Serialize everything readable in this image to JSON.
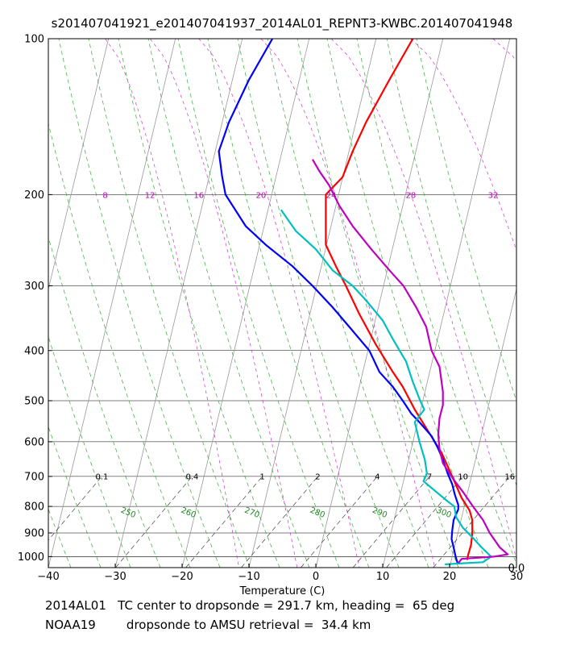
{
  "chart_data": {
    "type": "line",
    "title": "s201407041921_e201407041937_2014AL01_REPNT3-KWBC.201407041948",
    "xlabel": "Temperature (C)",
    "ylabel": "",
    "x_log": false,
    "y_log": true,
    "y_inverted": true,
    "xlim": [
      -40,
      30
    ],
    "ylim": [
      1050,
      100
    ],
    "x_ticks": [
      -40,
      -30,
      -20,
      -10,
      0,
      10,
      20,
      30
    ],
    "x_tick_labels": [
      "−40",
      "−30",
      "−20",
      "−10",
      "0",
      "10",
      "20",
      "30"
    ],
    "y_ticks": [
      100,
      200,
      300,
      400,
      500,
      600,
      700,
      800,
      900,
      1000
    ],
    "y_tick_labels": [
      "100",
      "200",
      "300",
      "400",
      "500",
      "600",
      "700",
      "800",
      "900",
      "1000"
    ],
    "grid": true,
    "isobar_lines": [
      100,
      200,
      300,
      400,
      500,
      600,
      700,
      800,
      900,
      1000
    ],
    "isotherm_lines_skew_deg_c": [
      -120,
      -110,
      -100,
      -90,
      -80,
      -70,
      -60,
      -50,
      -40,
      -30,
      -20,
      -10,
      0,
      10,
      20,
      30,
      40
    ],
    "mixing_ratio_labels": {
      "pressure": 700,
      "items": [
        {
          "label": "0.1",
          "x": -32
        },
        {
          "label": "0.4",
          "x": -18.5
        },
        {
          "label": "1",
          "x": -8
        },
        {
          "label": "2",
          "x": 0.3
        },
        {
          "label": "4",
          "x": 9.2
        },
        {
          "label": "7",
          "x": 17
        },
        {
          "label": "10",
          "x": 22
        },
        {
          "label": "16",
          "x": 29
        }
      ]
    },
    "dry_adiabat_labels": {
      "items": [
        {
          "label": "250",
          "x": -28,
          "p": 820
        },
        {
          "label": "260",
          "x": -19,
          "p": 820
        },
        {
          "label": "270",
          "x": -9.5,
          "p": 820
        },
        {
          "label": "280",
          "x": 0.3,
          "p": 820
        },
        {
          "label": "290",
          "x": 9.6,
          "p": 820
        },
        {
          "label": "300",
          "x": 19.2,
          "p": 820
        }
      ]
    },
    "moist_adiabat_labels": {
      "pressure": 200,
      "items": [
        {
          "label": "8",
          "x": -31.5
        },
        {
          "label": "12",
          "x": -24.8
        },
        {
          "label": "16",
          "x": -17.5
        },
        {
          "label": "20",
          "x": -8.2
        },
        {
          "label": "24",
          "x": 2.3
        },
        {
          "label": "28",
          "x": 14.2
        },
        {
          "label": "32",
          "x": 26.5
        }
      ]
    },
    "corner_label": "0.0",
    "series": [
      {
        "color": "#ff0000",
        "points": [
          [
            14.5,
            100
          ],
          [
            11,
            120
          ],
          [
            7.5,
            145
          ],
          [
            5.5,
            165
          ],
          [
            4,
            185
          ],
          [
            1.5,
            200
          ],
          [
            1.5,
            230
          ],
          [
            1.5,
            250
          ],
          [
            3,
            275
          ],
          [
            4.5,
            300
          ],
          [
            6.5,
            340
          ],
          [
            9,
            390
          ],
          [
            11.5,
            440
          ],
          [
            13,
            470
          ],
          [
            14.8,
            520
          ],
          [
            16.7,
            570
          ],
          [
            18.8,
            630
          ],
          [
            20.4,
            700
          ],
          [
            21.8,
            770
          ],
          [
            23,
            815
          ],
          [
            23.4,
            850
          ],
          [
            23.4,
            900
          ],
          [
            23.2,
            950
          ],
          [
            22.8,
            990
          ],
          [
            22.6,
            1015
          ]
        ]
      },
      {
        "color": "#0000ff",
        "points": [
          [
            -6.5,
            100
          ],
          [
            -10,
            120
          ],
          [
            -13,
            145
          ],
          [
            -14.5,
            165
          ],
          [
            -14,
            185
          ],
          [
            -13.5,
            200
          ],
          [
            -10.5,
            230
          ],
          [
            -7.5,
            250
          ],
          [
            -3.5,
            275
          ],
          [
            -0.5,
            300
          ],
          [
            2.5,
            330
          ],
          [
            5,
            360
          ],
          [
            8,
            400
          ],
          [
            9.5,
            440
          ],
          [
            11.5,
            470
          ],
          [
            13,
            500
          ],
          [
            14.3,
            530
          ],
          [
            15.5,
            550
          ],
          [
            17.3,
            585
          ],
          [
            18.2,
            615
          ],
          [
            19,
            650
          ],
          [
            19.7,
            690
          ],
          [
            20.4,
            725
          ],
          [
            20.8,
            760
          ],
          [
            21.3,
            795
          ],
          [
            21.3,
            810
          ],
          [
            20.6,
            850
          ],
          [
            20.4,
            890
          ],
          [
            20.3,
            925
          ],
          [
            20.6,
            960
          ],
          [
            20.9,
            1000
          ],
          [
            21.2,
            1030
          ]
        ]
      },
      {
        "color": "#00bfbf",
        "points": [
          [
            -5.2,
            214
          ],
          [
            -3,
            235
          ],
          [
            0,
            255
          ],
          [
            2.5,
            280
          ],
          [
            5.5,
            300
          ],
          [
            7.5,
            320
          ],
          [
            10,
            350
          ],
          [
            11.5,
            380
          ],
          [
            13.5,
            420
          ],
          [
            14.5,
            460
          ],
          [
            15.6,
            500
          ],
          [
            16.2,
            520
          ],
          [
            14.8,
            550
          ],
          [
            15.5,
            600
          ],
          [
            16.3,
            650
          ],
          [
            16.6,
            690
          ],
          [
            16.1,
            715
          ],
          [
            19.6,
            780
          ],
          [
            20.7,
            800
          ],
          [
            21,
            840
          ],
          [
            22,
            880
          ],
          [
            23.5,
            920
          ],
          [
            24.8,
            960
          ],
          [
            25.7,
            985
          ],
          [
            26.2,
            1000
          ],
          [
            25,
            1025
          ],
          [
            22,
            1030
          ],
          [
            19.3,
            1035
          ]
        ]
      },
      {
        "color": "#bf00bf",
        "points": [
          [
            -0.5,
            171
          ],
          [
            0.5,
            180
          ],
          [
            2,
            192
          ],
          [
            3.5,
            210
          ],
          [
            5.5,
            230
          ],
          [
            8.3,
            255
          ],
          [
            11,
            280
          ],
          [
            13.1,
            300
          ],
          [
            15,
            330
          ],
          [
            16.5,
            360
          ],
          [
            17.3,
            400
          ],
          [
            18.5,
            430
          ],
          [
            19,
            480
          ],
          [
            19,
            510
          ],
          [
            18.5,
            540
          ],
          [
            18.3,
            580
          ],
          [
            18.5,
            620
          ],
          [
            19,
            660
          ],
          [
            20.6,
            710
          ],
          [
            22,
            750
          ],
          [
            23.5,
            800
          ],
          [
            25,
            850
          ],
          [
            26,
            900
          ],
          [
            27.5,
            960
          ],
          [
            28.7,
            990
          ],
          [
            26.6,
            1000
          ],
          [
            21.8,
            1010
          ],
          [
            21.3,
            1030
          ]
        ]
      }
    ]
  },
  "captions": {
    "line1": "2014AL01   TC center to dropsonde = 291.7 km, heading =  65 deg",
    "line2": "NOAA19        dropsonde to AMSU retrieval =  34.4 km"
  }
}
